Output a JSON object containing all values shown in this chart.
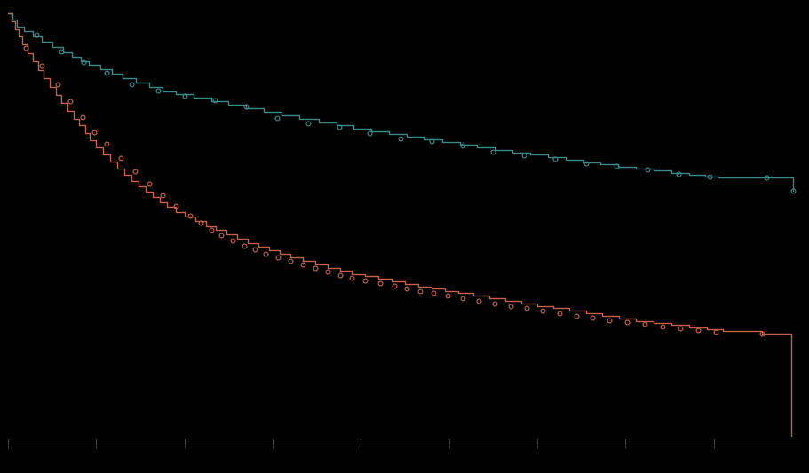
{
  "background_color": "#000000",
  "teal_color": "#3a8a8c",
  "red_color": "#c8614a",
  "ylim": [
    0.0,
    1.02
  ],
  "xlim": [
    0,
    9.0
  ],
  "xtick_positions": [
    0,
    1,
    2,
    3,
    4,
    5,
    6,
    7,
    8
  ],
  "teal_x": [
    0.0,
    0.05,
    0.1,
    0.18,
    0.28,
    0.38,
    0.5,
    0.62,
    0.72,
    0.82,
    0.92,
    1.05,
    1.18,
    1.3,
    1.45,
    1.6,
    1.75,
    1.9,
    2.1,
    2.3,
    2.5,
    2.7,
    2.9,
    3.1,
    3.3,
    3.52,
    3.72,
    3.92,
    4.12,
    4.32,
    4.52,
    4.72,
    4.92,
    5.12,
    5.32,
    5.52,
    5.72,
    5.92,
    6.12,
    6.32,
    6.52,
    6.72,
    6.92,
    7.12,
    7.32,
    7.52,
    7.72,
    7.9,
    8.05,
    8.6,
    8.9
  ],
  "teal_y": [
    1.0,
    0.985,
    0.97,
    0.958,
    0.946,
    0.934,
    0.922,
    0.91,
    0.9,
    0.89,
    0.88,
    0.87,
    0.86,
    0.85,
    0.84,
    0.83,
    0.82,
    0.812,
    0.804,
    0.796,
    0.788,
    0.78,
    0.772,
    0.764,
    0.756,
    0.748,
    0.74,
    0.733,
    0.726,
    0.72,
    0.714,
    0.708,
    0.702,
    0.696,
    0.69,
    0.684,
    0.678,
    0.672,
    0.666,
    0.66,
    0.655,
    0.65,
    0.645,
    0.64,
    0.635,
    0.63,
    0.625,
    0.622,
    0.62,
    0.62,
    0.588
  ],
  "teal_censor_x": [
    0.32,
    0.6,
    0.85,
    1.12,
    1.4,
    1.7,
    2.0,
    2.35,
    2.7,
    3.05,
    3.4,
    3.75,
    4.1,
    4.45,
    4.8,
    5.15,
    5.5,
    5.85,
    6.2,
    6.55,
    6.9,
    7.25,
    7.6,
    7.95,
    8.6,
    8.9
  ],
  "teal_censor_y": [
    0.95,
    0.912,
    0.886,
    0.862,
    0.836,
    0.822,
    0.808,
    0.798,
    0.784,
    0.758,
    0.744,
    0.736,
    0.722,
    0.71,
    0.704,
    0.693,
    0.68,
    0.67,
    0.663,
    0.652,
    0.646,
    0.637,
    0.627,
    0.621,
    0.62,
    0.588
  ],
  "red_x": [
    0.0,
    0.04,
    0.08,
    0.12,
    0.16,
    0.22,
    0.28,
    0.34,
    0.4,
    0.47,
    0.54,
    0.6,
    0.67,
    0.74,
    0.8,
    0.87,
    0.93,
    1.0,
    1.08,
    1.16,
    1.24,
    1.32,
    1.4,
    1.48,
    1.56,
    1.64,
    1.72,
    1.8,
    1.9,
    2.0,
    2.12,
    2.24,
    2.36,
    2.48,
    2.6,
    2.72,
    2.84,
    2.96,
    3.08,
    3.2,
    3.34,
    3.48,
    3.62,
    3.76,
    3.9,
    4.05,
    4.2,
    4.35,
    4.5,
    4.65,
    4.8,
    4.95,
    5.1,
    5.28,
    5.46,
    5.64,
    5.82,
    6.0,
    6.18,
    6.36,
    6.55,
    6.74,
    6.93,
    7.12,
    7.32,
    7.52,
    7.72,
    7.92,
    8.1,
    8.55,
    8.88,
    8.88
  ],
  "red_y": [
    1.0,
    0.982,
    0.964,
    0.946,
    0.928,
    0.908,
    0.888,
    0.868,
    0.849,
    0.829,
    0.81,
    0.792,
    0.774,
    0.756,
    0.74,
    0.723,
    0.706,
    0.69,
    0.673,
    0.657,
    0.641,
    0.625,
    0.611,
    0.598,
    0.586,
    0.574,
    0.562,
    0.551,
    0.54,
    0.529,
    0.518,
    0.507,
    0.497,
    0.487,
    0.477,
    0.468,
    0.459,
    0.45,
    0.442,
    0.434,
    0.426,
    0.418,
    0.41,
    0.403,
    0.396,
    0.39,
    0.384,
    0.378,
    0.372,
    0.367,
    0.362,
    0.357,
    0.352,
    0.346,
    0.34,
    0.334,
    0.328,
    0.322,
    0.316,
    0.31,
    0.304,
    0.298,
    0.292,
    0.287,
    0.282,
    0.277,
    0.272,
    0.267,
    0.263,
    0.258,
    0.258,
    0.02
  ],
  "red_censor_x": [
    0.2,
    0.38,
    0.56,
    0.7,
    0.84,
    0.98,
    1.12,
    1.28,
    1.44,
    1.6,
    1.75,
    1.9,
    2.06,
    2.18,
    2.3,
    2.42,
    2.55,
    2.68,
    2.8,
    2.92,
    3.06,
    3.2,
    3.34,
    3.48,
    3.62,
    3.76,
    3.9,
    4.05,
    4.22,
    4.38,
    4.52,
    4.67,
    4.82,
    4.98,
    5.15,
    5.34,
    5.52,
    5.7,
    5.88,
    6.06,
    6.25,
    6.44,
    6.62,
    6.82,
    7.02,
    7.22,
    7.42,
    7.62,
    7.82,
    8.02,
    8.55
  ],
  "red_censor_y": [
    0.92,
    0.878,
    0.836,
    0.796,
    0.76,
    0.724,
    0.697,
    0.665,
    0.634,
    0.604,
    0.578,
    0.553,
    0.53,
    0.514,
    0.499,
    0.485,
    0.473,
    0.462,
    0.452,
    0.443,
    0.434,
    0.426,
    0.417,
    0.409,
    0.401,
    0.394,
    0.387,
    0.38,
    0.374,
    0.368,
    0.362,
    0.356,
    0.352,
    0.346,
    0.34,
    0.334,
    0.328,
    0.322,
    0.316,
    0.31,
    0.305,
    0.299,
    0.294,
    0.289,
    0.284,
    0.279,
    0.274,
    0.27,
    0.265,
    0.261,
    0.258
  ]
}
